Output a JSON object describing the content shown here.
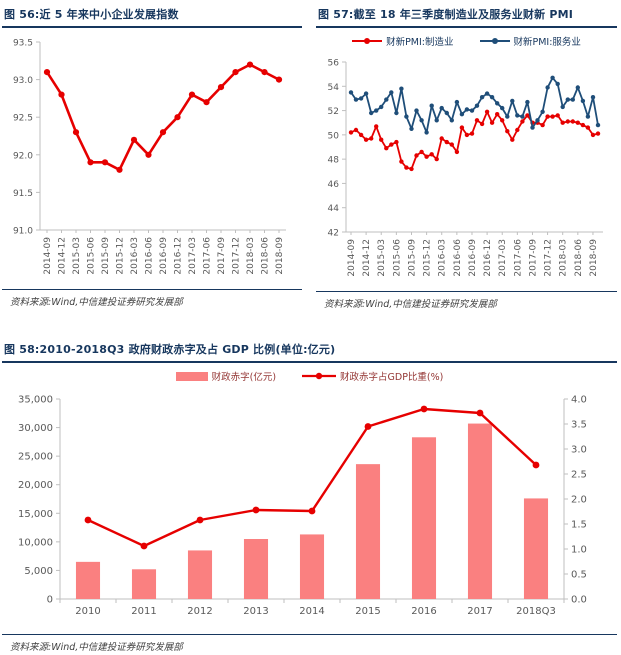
{
  "colors": {
    "red": "#E60000",
    "blue": "#1F4E79",
    "bar": "#FA8080",
    "title_text": "#17375E",
    "rule": "#17375E",
    "axis_line": "#BFBFBF",
    "tick_text": "#595959",
    "source_text": "#404040",
    "legend58_text": "#943634"
  },
  "panels": {
    "fig56": {
      "title": "图 56:近 5 年来中小企业发展指数",
      "source": "资料来源:Wind,中信建投证券研究发展部"
    },
    "fig57": {
      "title": "图 57:截至 18 年三季度制造业及服务业财新 PMI",
      "legend": [
        "财新PMI:制造业",
        "财新PMI:服务业"
      ],
      "source": "资料来源:Wind,中信建投证券研究发展部"
    },
    "fig58": {
      "title": "图 58:2010-2018Q3 政府财政赤字及占 GDP 比例(单位:亿元)",
      "legend": [
        "财政赤字(亿元)",
        "财政赤字占GDP比重(%)"
      ],
      "source": "资料来源:Wind,中信建投证券研究发展部"
    }
  },
  "chart_data": [
    {
      "id": "fig56",
      "type": "line",
      "title": "近5年来中小企业发展指数",
      "x": [
        "2014-09",
        "2014-12",
        "2015-03",
        "2015-06",
        "2015-09",
        "2015-12",
        "2016-03",
        "2016-06",
        "2016-09",
        "2016-12",
        "2017-03",
        "2017-06",
        "2017-09",
        "2017-12",
        "2018-03",
        "2018-06",
        "2018-09"
      ],
      "series": [
        {
          "name": "中小企业发展指数",
          "color_key": "red",
          "values": [
            93.1,
            92.8,
            92.3,
            91.9,
            91.9,
            91.8,
            92.2,
            92.0,
            92.3,
            92.5,
            92.8,
            92.7,
            92.9,
            93.1,
            93.2,
            93.1,
            93.0
          ]
        }
      ],
      "ylim": [
        91.0,
        93.5
      ],
      "ystep": 0.5,
      "grid": false,
      "legend_position": "none"
    },
    {
      "id": "fig57",
      "type": "line",
      "title": "截至18年三季度制造业及服务业财新PMI",
      "x": [
        "2014-09",
        "2014-10",
        "2014-11",
        "2014-12",
        "2015-01",
        "2015-02",
        "2015-03",
        "2015-04",
        "2015-05",
        "2015-06",
        "2015-07",
        "2015-08",
        "2015-09",
        "2015-10",
        "2015-11",
        "2015-12",
        "2016-01",
        "2016-02",
        "2016-03",
        "2016-04",
        "2016-05",
        "2016-06",
        "2016-07",
        "2016-08",
        "2016-09",
        "2016-10",
        "2016-11",
        "2016-12",
        "2017-01",
        "2017-02",
        "2017-03",
        "2017-04",
        "2017-05",
        "2017-06",
        "2017-07",
        "2017-08",
        "2017-09",
        "2017-10",
        "2017-11",
        "2017-12",
        "2018-01",
        "2018-02",
        "2018-03",
        "2018-04",
        "2018-05",
        "2018-06",
        "2018-07",
        "2018-08",
        "2018-09",
        "2018-10"
      ],
      "x_tick_every": 3,
      "series": [
        {
          "name": "财新PMI:制造业",
          "color_key": "red",
          "values": [
            50.2,
            50.4,
            50.0,
            49.6,
            49.7,
            50.7,
            49.6,
            48.9,
            49.2,
            49.4,
            47.8,
            47.3,
            47.2,
            48.3,
            48.6,
            48.2,
            48.4,
            48.0,
            49.7,
            49.4,
            49.2,
            48.6,
            50.6,
            50.0,
            50.1,
            51.2,
            50.9,
            51.9,
            51.0,
            51.7,
            51.2,
            50.3,
            49.6,
            50.4,
            51.1,
            51.6,
            51.0,
            51.0,
            50.8,
            51.5,
            51.5,
            51.6,
            51.0,
            51.1,
            51.1,
            51.0,
            50.8,
            50.6,
            50.0,
            50.1
          ]
        },
        {
          "name": "财新PMI:服务业",
          "color_key": "blue",
          "values": [
            53.5,
            52.9,
            53.0,
            53.4,
            51.8,
            52.0,
            52.3,
            52.9,
            53.5,
            51.8,
            53.8,
            51.5,
            50.5,
            52.0,
            51.2,
            50.2,
            52.4,
            51.2,
            52.2,
            51.8,
            51.2,
            52.7,
            51.7,
            52.1,
            52.0,
            52.4,
            53.1,
            53.4,
            53.1,
            52.6,
            52.2,
            51.5,
            52.8,
            51.6,
            51.5,
            52.7,
            50.6,
            51.2,
            51.9,
            53.9,
            54.7,
            54.2,
            52.3,
            52.9,
            52.9,
            53.9,
            52.8,
            51.5,
            53.1,
            50.8
          ]
        }
      ],
      "ylim": [
        42,
        56
      ],
      "ystep": 2,
      "grid": false,
      "legend_position": "top"
    },
    {
      "id": "fig58",
      "type": "bar",
      "title": "2010-2018Q3 政府财政赤字及占GDP比例(单位:亿元)",
      "categories": [
        "2010",
        "2011",
        "2012",
        "2013",
        "2014",
        "2015",
        "2016",
        "2017",
        "2018Q3"
      ],
      "bar_series": {
        "name": "财政赤字(亿元)",
        "color_key": "bar",
        "values": [
          6500,
          5200,
          8500,
          10500,
          11300,
          23600,
          28300,
          30700,
          17600
        ]
      },
      "line_series": {
        "name": "财政赤字占GDP比重(%)",
        "color_key": "red",
        "axis": "right",
        "values": [
          1.58,
          1.06,
          1.58,
          1.78,
          1.76,
          3.45,
          3.8,
          3.72,
          2.68
        ]
      },
      "ylim_left": [
        0,
        35000
      ],
      "ystep_left": 5000,
      "ylim_right": [
        0.0,
        4.0
      ],
      "ystep_right": 0.5,
      "grid": false,
      "legend_position": "top"
    }
  ]
}
